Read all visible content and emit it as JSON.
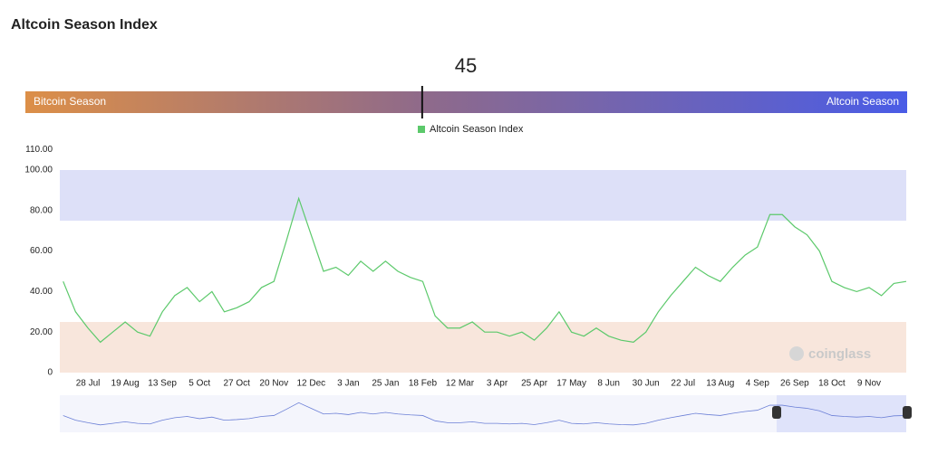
{
  "title": "Altcoin Season Index",
  "gauge": {
    "value": 45,
    "range": [
      0,
      100
    ],
    "left_label": "Bitcoin Season",
    "right_label": "Altcoin Season"
  },
  "chart_data": {
    "type": "line",
    "categories": [
      null,
      null,
      "28 Jul",
      null,
      null,
      "19 Aug",
      null,
      null,
      "13 Sep",
      null,
      null,
      "5 Oct",
      null,
      null,
      "27 Oct",
      null,
      null,
      "20 Nov",
      null,
      null,
      "12 Dec",
      null,
      null,
      "3 Jan",
      null,
      null,
      "25 Jan",
      null,
      null,
      "18 Feb",
      null,
      null,
      "12 Mar",
      null,
      null,
      "3 Apr",
      null,
      null,
      "25 Apr",
      null,
      null,
      "17 May",
      null,
      null,
      "8 Jun",
      null,
      null,
      "30 Jun",
      null,
      null,
      "22 Jul",
      null,
      null,
      "13 Aug",
      null,
      null,
      "4 Sep",
      null,
      null,
      "26 Sep",
      null,
      null,
      "18 Oct",
      null,
      null,
      "9 Nov",
      null,
      null,
      null
    ],
    "series": [
      {
        "name": "Altcoin Season Index",
        "color": "#5cc96b",
        "values": [
          45,
          30,
          22,
          15,
          20,
          25,
          20,
          18,
          30,
          38,
          42,
          35,
          40,
          30,
          32,
          35,
          42,
          45,
          65,
          86,
          68,
          50,
          52,
          48,
          55,
          50,
          55,
          50,
          47,
          45,
          28,
          22,
          22,
          25,
          20,
          20,
          18,
          20,
          16,
          22,
          30,
          20,
          18,
          22,
          18,
          16,
          15,
          20,
          30,
          38,
          45,
          52,
          48,
          45,
          52,
          58,
          62,
          78,
          78,
          72,
          68,
          60,
          45,
          42,
          40,
          42,
          38,
          44,
          45
        ]
      }
    ],
    "ylim": [
      0,
      110
    ],
    "yticks": [
      0,
      {
        "value": 20,
        "label": "20.00"
      },
      {
        "value": 40,
        "label": "40.00"
      },
      {
        "value": 60,
        "label": "60.00"
      },
      {
        "value": 80,
        "label": "80.00"
      },
      {
        "value": 100,
        "label": "100.00"
      },
      {
        "value": 110,
        "label": "110.00"
      }
    ],
    "bands": [
      {
        "from": 75,
        "to": 100,
        "color": "#dde0f8"
      },
      {
        "from": 0,
        "to": 25,
        "color": "#f8e6dc"
      }
    ],
    "watermark": "coinglass",
    "navigator_color": "#6b7fd6"
  }
}
